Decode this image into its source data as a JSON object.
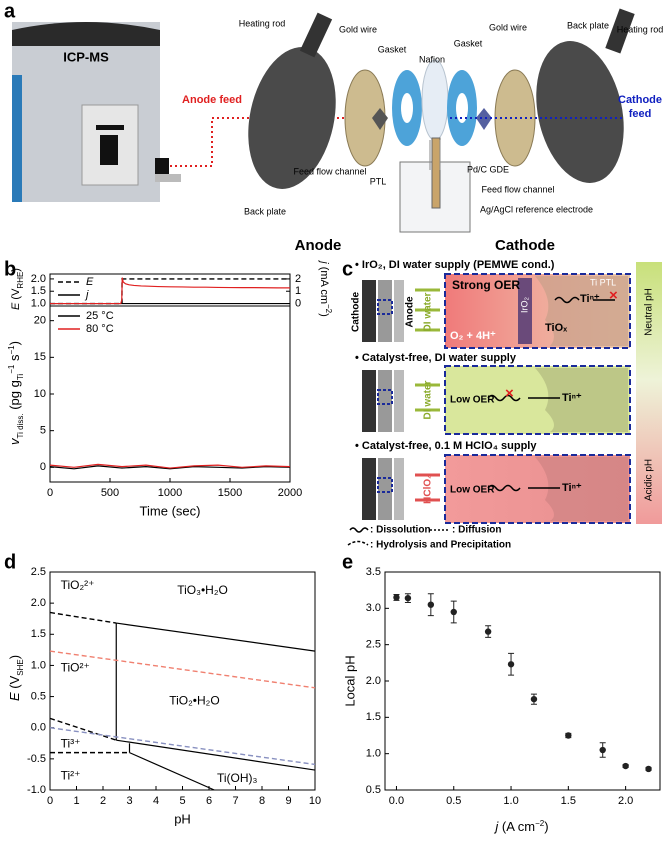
{
  "panels": [
    "a",
    "b",
    "c",
    "d",
    "e"
  ],
  "panel_a": {
    "labels": [
      "ICP-MS",
      "Heating rod",
      "Gold wire",
      "Gasket",
      "Nafion",
      "Gasket",
      "Gold wire",
      "Back plate",
      "Heating rod",
      "Anode feed",
      "Cathode",
      "feed",
      "PTL",
      "Pd/C GDE",
      "Feed flow channel",
      "Feed flow channel",
      "Back plate",
      "Ag/AgCl reference electrode",
      "Anode",
      "Cathode"
    ]
  },
  "panel_c": {
    "rows": [
      "•  IrO₂, DI water supply (PEMWE cond.)",
      "•  Catalyst-free, DI water supply",
      "•  Catalyst-free, 0.1 M HClO₄ supply"
    ],
    "labels": [
      "Cathode",
      "Anode",
      "DI water",
      "Strong OER",
      "IrO₂",
      "Ti PTL",
      "Tiⁿ⁺",
      "TiOₓ",
      "O₂ + 4H⁺",
      "DI water",
      "Low OER",
      "Tiⁿ⁺",
      "HClO₄",
      "Low OER",
      "Tiⁿ⁺",
      ": Dissolution",
      ": Diffusion",
      ": Hydrolysis and Precipitation",
      "Neutral pH",
      "Acidic pH"
    ]
  },
  "chart_data": [
    {
      "type": "line",
      "ylabel": [
        "E",
        " (V",
        "RHE",
        ")"
      ],
      "y2label": [
        "j",
        " (mA cm",
        "−2",
        ")"
      ],
      "xlim": [
        0,
        2000
      ],
      "ylim": [
        0.9,
        2.2
      ],
      "yticks": [
        {
          "value": 1,
          "label": "1.0"
        },
        1.5,
        {
          "value": 2,
          "label": "2.0"
        }
      ],
      "y2lim": [
        -0.2,
        2.4
      ],
      "y2ticks": [
        0,
        1,
        2
      ],
      "series": [
        {
          "name": "E",
          "color": "#000000",
          "dash": true,
          "x": [
            0,
            600,
            600,
            2000
          ],
          "values": [
            1,
            1,
            2,
            2
          ]
        },
        {
          "name": "j",
          "color": "#000000",
          "axis": "y2",
          "x": [
            0,
            600,
            2000
          ],
          "values": [
            0,
            0,
            0
          ]
        },
        {
          "color": "#e02020",
          "axis": "y2",
          "x": [
            0,
            590,
            598,
            602,
            610,
            630,
            660,
            700,
            760,
            820,
            900,
            1000,
            1100,
            1200,
            1300,
            1400,
            1500,
            1600,
            1700,
            1800,
            1900,
            2000
          ],
          "values": [
            0,
            0,
            0.3,
            2.1,
            1.75,
            1.6,
            1.52,
            1.47,
            1.43,
            1.41,
            1.38,
            1.36,
            1.35,
            1.33,
            1.33,
            1.31,
            1.3,
            1.29,
            1.29,
            1.28,
            1.27,
            1.27
          ]
        }
      ]
    },
    {
      "type": "line",
      "xlabel": "Time (sec)",
      "ylabel": [
        "v",
        "Ti diss.",
        " (pg g",
        "Ti",
        "−1",
        " s",
        "−1",
        ")"
      ],
      "xlim": [
        0,
        2000
      ],
      "xticks": [
        0,
        500,
        1000,
        1500,
        2000
      ],
      "ylim": [
        -2,
        22
      ],
      "yticks": [
        0,
        5,
        10,
        15,
        20
      ],
      "series": [
        {
          "name": "25 °C",
          "color": "#000000",
          "x": [
            0,
            200,
            400,
            600,
            800,
            1000,
            1200,
            1400,
            1600,
            1800,
            2000
          ],
          "values": [
            0.1,
            -0.2,
            0.2,
            -0.1,
            0.1,
            -0.2,
            0.1,
            0,
            -0.1,
            0.1,
            0
          ]
        },
        {
          "name": "80 °C",
          "color": "#e02020",
          "x": [
            0,
            200,
            400,
            600,
            800,
            1000,
            1200,
            1400,
            1600,
            1800,
            2000
          ],
          "values": [
            0.3,
            0,
            0.4,
            0.1,
            0.3,
            -0.1,
            0.2,
            0.3,
            0,
            0.2,
            0.1
          ]
        }
      ]
    },
    {
      "type": "line",
      "xlabel": "pH",
      "ylabel": [
        "E",
        " (V",
        "SHE",
        ")"
      ],
      "xlim": [
        0,
        10
      ],
      "xticks": [
        0,
        1,
        2,
        3,
        4,
        5,
        6,
        7,
        8,
        9,
        10
      ],
      "ylim": [
        -1,
        2.5
      ],
      "yticks": [
        {
          "value": -1,
          "label": "-1.0"
        },
        -0.5,
        {
          "value": 0,
          "label": "0.0"
        },
        0.5,
        {
          "value": 1,
          "label": "1.0"
        },
        1.5,
        {
          "value": 2,
          "label": "2.0"
        },
        2.5
      ],
      "annotations": [
        "TiO₂²⁺",
        "TiO₃•H₂O",
        "TiO²⁺",
        "TiO₂•H₂O",
        "Ti³⁺",
        "Ti²⁺",
        "Ti(OH)₃"
      ],
      "series": [
        {
          "color": "#000000",
          "dash": true,
          "x": [
            0,
            2.5
          ],
          "values": [
            1.85,
            1.68
          ]
        },
        {
          "color": "#000000",
          "x": [
            2.5,
            10
          ],
          "values": [
            1.68,
            1.23
          ]
        },
        {
          "color": "#000000",
          "x": [
            2.5,
            2.5
          ],
          "values": [
            1.68,
            -0.2
          ]
        },
        {
          "color": "#000000",
          "dash": true,
          "x": [
            0,
            2.5
          ],
          "values": [
            0.15,
            -0.2
          ]
        },
        {
          "color": "#000000",
          "x": [
            2.5,
            10
          ],
          "values": [
            -0.2,
            -0.68
          ]
        },
        {
          "color": "#000000",
          "dash": true,
          "x": [
            0,
            3
          ],
          "values": [
            -0.4,
            -0.4
          ]
        },
        {
          "color": "#000000",
          "x": [
            3,
            3
          ],
          "values": [
            -0.4,
            -0.25
          ]
        },
        {
          "color": "#000000",
          "x": [
            3,
            6.2
          ],
          "values": [
            -0.4,
            -1
          ]
        },
        {
          "color": "#f08070",
          "dash": true,
          "x": [
            0,
            10
          ],
          "values": [
            1.23,
            0.64
          ]
        },
        {
          "color": "#8890c0",
          "dash": true,
          "x": [
            0,
            10
          ],
          "values": [
            0,
            -0.59
          ]
        }
      ]
    },
    {
      "type": "scatter",
      "xlabel": [
        "j",
        " (A cm",
        "−2",
        ")"
      ],
      "ylabel": "Local pH",
      "color": "#222222",
      "xlim": [
        -0.1,
        2.3
      ],
      "xticks": [
        {
          "value": 0,
          "label": "0.0"
        },
        0.5,
        {
          "value": 1,
          "label": "1.0"
        },
        1.5,
        {
          "value": 2,
          "label": "2.0"
        }
      ],
      "ylim": [
        0.5,
        3.5
      ],
      "yticks": [
        0.5,
        {
          "value": 1,
          "label": "1.0"
        },
        1.5,
        {
          "value": 2,
          "label": "2.0"
        },
        2.5,
        {
          "value": 3,
          "label": "3.0"
        },
        3.5
      ],
      "x": [
        0,
        0.1,
        0.3,
        0.5,
        0.8,
        1.0,
        1.2,
        1.5,
        1.8,
        2.0,
        2.2
      ],
      "values": [
        3.15,
        3.14,
        3.05,
        2.95,
        2.68,
        2.23,
        1.75,
        1.25,
        1.05,
        0.83,
        0.79
      ],
      "errors": [
        0.04,
        0.06,
        0.15,
        0.15,
        0.08,
        0.15,
        0.07,
        0.03,
        0.1,
        0.02,
        0.02
      ]
    }
  ]
}
